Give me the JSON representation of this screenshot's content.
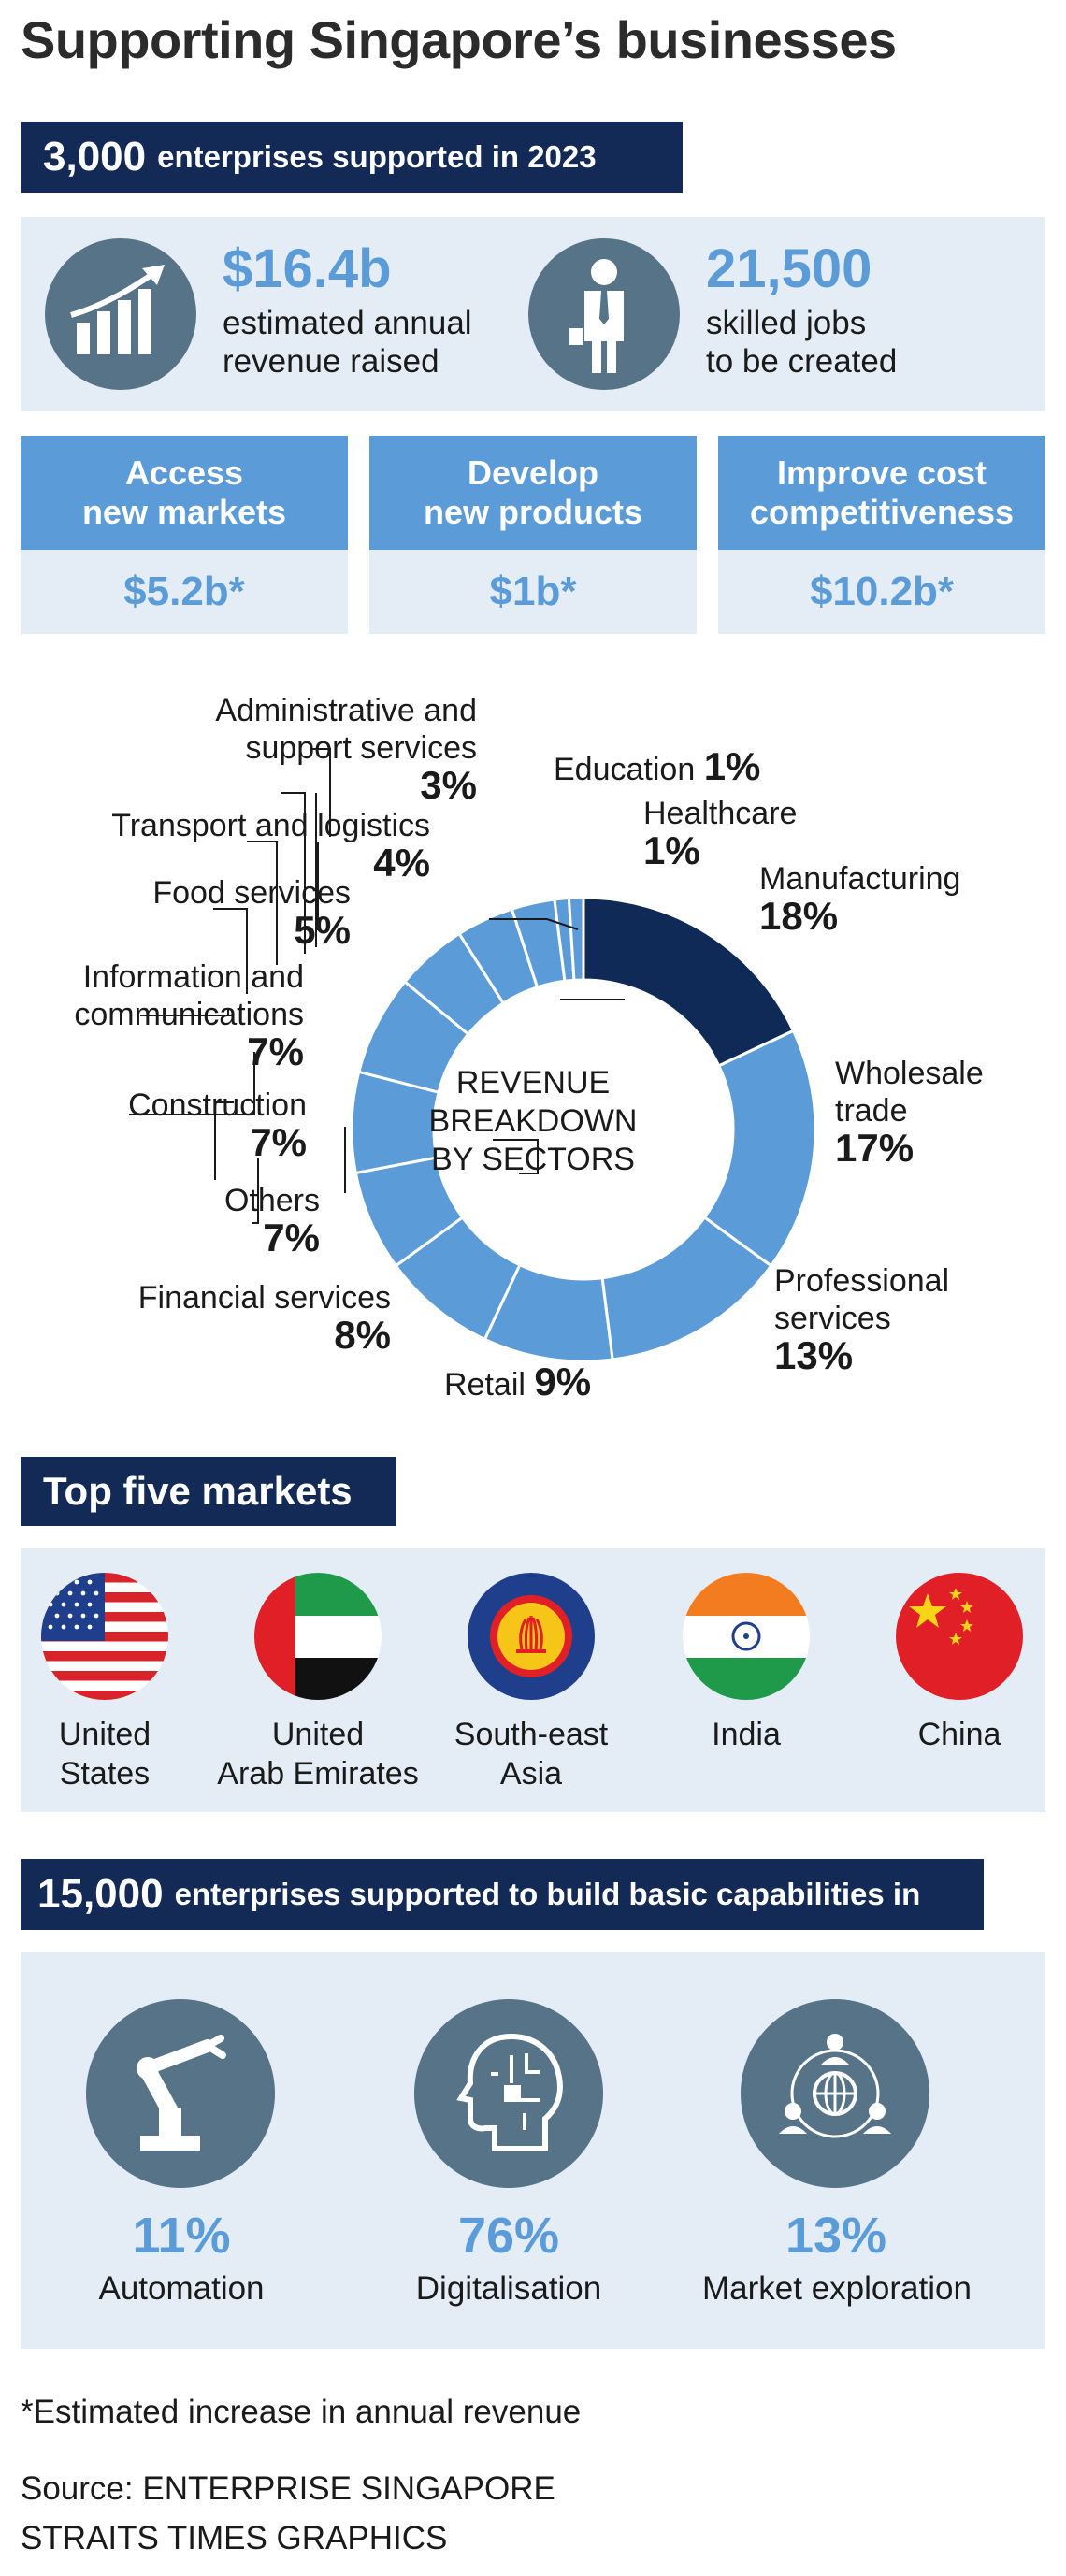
{
  "title": "Supporting Singapore’s businesses",
  "banner1": {
    "big": "3,000",
    "text": "enterprises supported in 2023"
  },
  "stats": [
    {
      "value": "$16.4b",
      "line1": "estimated annual",
      "line2": "revenue raised",
      "icon": "growth-chart-icon"
    },
    {
      "value": "21,500",
      "line1": "skilled jobs",
      "line2": "to be created",
      "icon": "businessman-icon"
    }
  ],
  "categories": [
    {
      "line1": "Access",
      "line2": "new markets",
      "value": "$5.2b*"
    },
    {
      "line1": "Develop",
      "line2": "new products",
      "value": "$1b*"
    },
    {
      "line1": "Improve cost",
      "line2": "competitiveness",
      "value": "$10.2b*"
    }
  ],
  "chart_data": {
    "type": "pie",
    "title": "REVENUE BREAKDOWN BY SECTORS",
    "title_lines": [
      "REVENUE",
      "BREAKDOWN",
      "BY SECTORS"
    ],
    "slices": [
      {
        "label": "Manufacturing",
        "value": 18,
        "pct": "18%"
      },
      {
        "label": "Wholesale trade",
        "value": 17,
        "pct": "17%"
      },
      {
        "label": "Professional services",
        "value": 13,
        "pct": "13%"
      },
      {
        "label": "Retail",
        "value": 9,
        "pct": "9%"
      },
      {
        "label": "Financial services",
        "value": 8,
        "pct": "8%"
      },
      {
        "label": "Others",
        "value": 7,
        "pct": "7%"
      },
      {
        "label": "Construction",
        "value": 7,
        "pct": "7%"
      },
      {
        "label": "Information and communications",
        "value": 7,
        "pct": "7%"
      },
      {
        "label": "Food services",
        "value": 5,
        "pct": "5%"
      },
      {
        "label": "Transport and logistics",
        "value": 4,
        "pct": "4%"
      },
      {
        "label": "Administrative and support services",
        "value": 3,
        "pct": "3%"
      },
      {
        "label": "Education",
        "value": 1,
        "pct": "1%"
      },
      {
        "label": "Healthcare",
        "value": 1,
        "pct": "1%"
      }
    ],
    "label_lines": {
      "manufacturing": "Manufacturing",
      "wholesale_1": "Wholesale",
      "wholesale_2": "trade",
      "professional_1": "Professional",
      "professional_2": "services",
      "retail": "Retail",
      "financial": "Financial services",
      "others": "Others",
      "construction": "Construction",
      "infocomm_1": "Information and",
      "infocomm_2": "communications",
      "food": "Food services",
      "transport": "Transport and logistics",
      "admin_1": "Administrative and",
      "admin_2": "support services",
      "education": "Education",
      "healthcare": "Healthcare"
    },
    "colors": {
      "highlight": "#0f2a57",
      "base": "#5b9bd8",
      "separator": "#ffffff"
    }
  },
  "markets": {
    "heading": "Top five markets",
    "items": [
      {
        "line1": "United",
        "line2": "States",
        "flag": "us-flag-icon"
      },
      {
        "line1": "United",
        "line2": "Arab Emirates",
        "flag": "uae-flag-icon"
      },
      {
        "line1": "South-east",
        "line2": "Asia",
        "flag": "asean-flag-icon"
      },
      {
        "line1": "India",
        "line2": "",
        "flag": "india-flag-icon"
      },
      {
        "line1": "China",
        "line2": "",
        "flag": "china-flag-icon"
      }
    ]
  },
  "banner2": {
    "big": "15,000",
    "text": "enterprises supported to build basic capabilities in"
  },
  "capabilities": [
    {
      "pct": "11%",
      "label": "Automation",
      "icon": "robot-arm-icon"
    },
    {
      "pct": "76%",
      "label": "Digitalisation",
      "icon": "digital-head-icon"
    },
    {
      "pct": "13%",
      "label": "Market exploration",
      "icon": "global-network-icon"
    }
  ],
  "footnote": "*Estimated increase in annual revenue",
  "source_line1": "Source: ENTERPRISE SINGAPORE",
  "source_line2": "STRAITS TIMES GRAPHICS",
  "palette": {
    "navy": "#142a56",
    "accent": "#5b9bd8",
    "panel": "#e4edf6",
    "icon_circle": "#567387"
  }
}
